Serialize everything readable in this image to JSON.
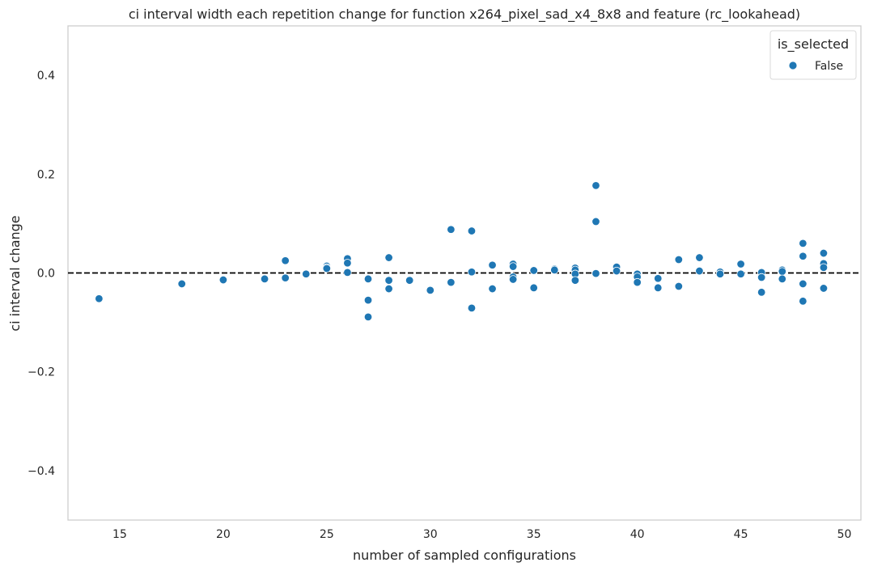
{
  "chart_data": {
    "type": "scatter",
    "title": "ci interval width each repetition change for function x264_pixel_sad_x4_8x8 and feature (rc_lookahead)",
    "xlabel": "number of sampled configurations",
    "ylabel": "ci interval change",
    "xlim": [
      12.5,
      50.8
    ],
    "ylim": [
      -0.5,
      0.5
    ],
    "xticks": [
      15,
      20,
      25,
      30,
      35,
      40,
      45,
      50
    ],
    "xtick_labels": [
      "15",
      "20",
      "25",
      "30",
      "35",
      "40",
      "45",
      "50"
    ],
    "yticks": [
      -0.4,
      -0.2,
      0.0,
      0.2,
      0.4
    ],
    "ytick_labels": [
      "−0.4",
      "−0.2",
      "0.0",
      "0.2",
      "0.4"
    ],
    "grid": false,
    "reference_line": {
      "y": 0,
      "style": "dashed",
      "color": "#000000"
    },
    "legend": {
      "title": "is_selected",
      "placement": "top-right"
    },
    "series": [
      {
        "name": "False",
        "color": "#1f77b4",
        "points": [
          [
            14,
            -0.052
          ],
          [
            18,
            -0.022
          ],
          [
            20,
            -0.014
          ],
          [
            22,
            -0.012
          ],
          [
            23,
            0.025
          ],
          [
            23,
            -0.01
          ],
          [
            24,
            -0.002
          ],
          [
            25,
            0.014
          ],
          [
            25,
            0.011
          ],
          [
            25,
            0.009
          ],
          [
            26,
            0.029
          ],
          [
            26,
            0.02
          ],
          [
            26,
            0.001
          ],
          [
            27,
            -0.012
          ],
          [
            27,
            -0.055
          ],
          [
            27,
            -0.089
          ],
          [
            28,
            0.031
          ],
          [
            28,
            -0.015
          ],
          [
            28,
            -0.032
          ],
          [
            29,
            -0.015
          ],
          [
            30,
            -0.035
          ],
          [
            31,
            0.088
          ],
          [
            31,
            -0.019
          ],
          [
            32,
            0.085
          ],
          [
            32,
            0.002
          ],
          [
            32,
            -0.071
          ],
          [
            33,
            0.016
          ],
          [
            33,
            -0.032
          ],
          [
            34,
            0.018
          ],
          [
            34,
            0.013
          ],
          [
            34,
            -0.008
          ],
          [
            34,
            -0.013
          ],
          [
            35,
            0.005
          ],
          [
            35,
            -0.03
          ],
          [
            36,
            0.008
          ],
          [
            36,
            0.006
          ],
          [
            37,
            0.01
          ],
          [
            37,
            0.006
          ],
          [
            37,
            -0.002
          ],
          [
            37,
            -0.015
          ],
          [
            38,
            0.177
          ],
          [
            38,
            0.104
          ],
          [
            38,
            -0.001
          ],
          [
            39,
            0.012
          ],
          [
            39,
            0.004
          ],
          [
            40,
            -0.002
          ],
          [
            40,
            -0.008
          ],
          [
            40,
            -0.019
          ],
          [
            41,
            -0.011
          ],
          [
            41,
            -0.03
          ],
          [
            42,
            0.027
          ],
          [
            42,
            -0.027
          ],
          [
            43,
            0.031
          ],
          [
            43,
            0.004
          ],
          [
            44,
            0.002
          ],
          [
            44,
            -0.002
          ],
          [
            45,
            0.018
          ],
          [
            45,
            -0.002
          ],
          [
            46,
            0.001
          ],
          [
            46,
            -0.009
          ],
          [
            46,
            -0.039
          ],
          [
            47,
            0.006
          ],
          [
            47,
            0.003
          ],
          [
            47,
            -0.012
          ],
          [
            48,
            0.06
          ],
          [
            48,
            0.034
          ],
          [
            48,
            -0.022
          ],
          [
            48,
            -0.057
          ],
          [
            49,
            0.04
          ],
          [
            49,
            0.019
          ],
          [
            49,
            0.011
          ],
          [
            49,
            -0.031
          ]
        ]
      }
    ]
  }
}
